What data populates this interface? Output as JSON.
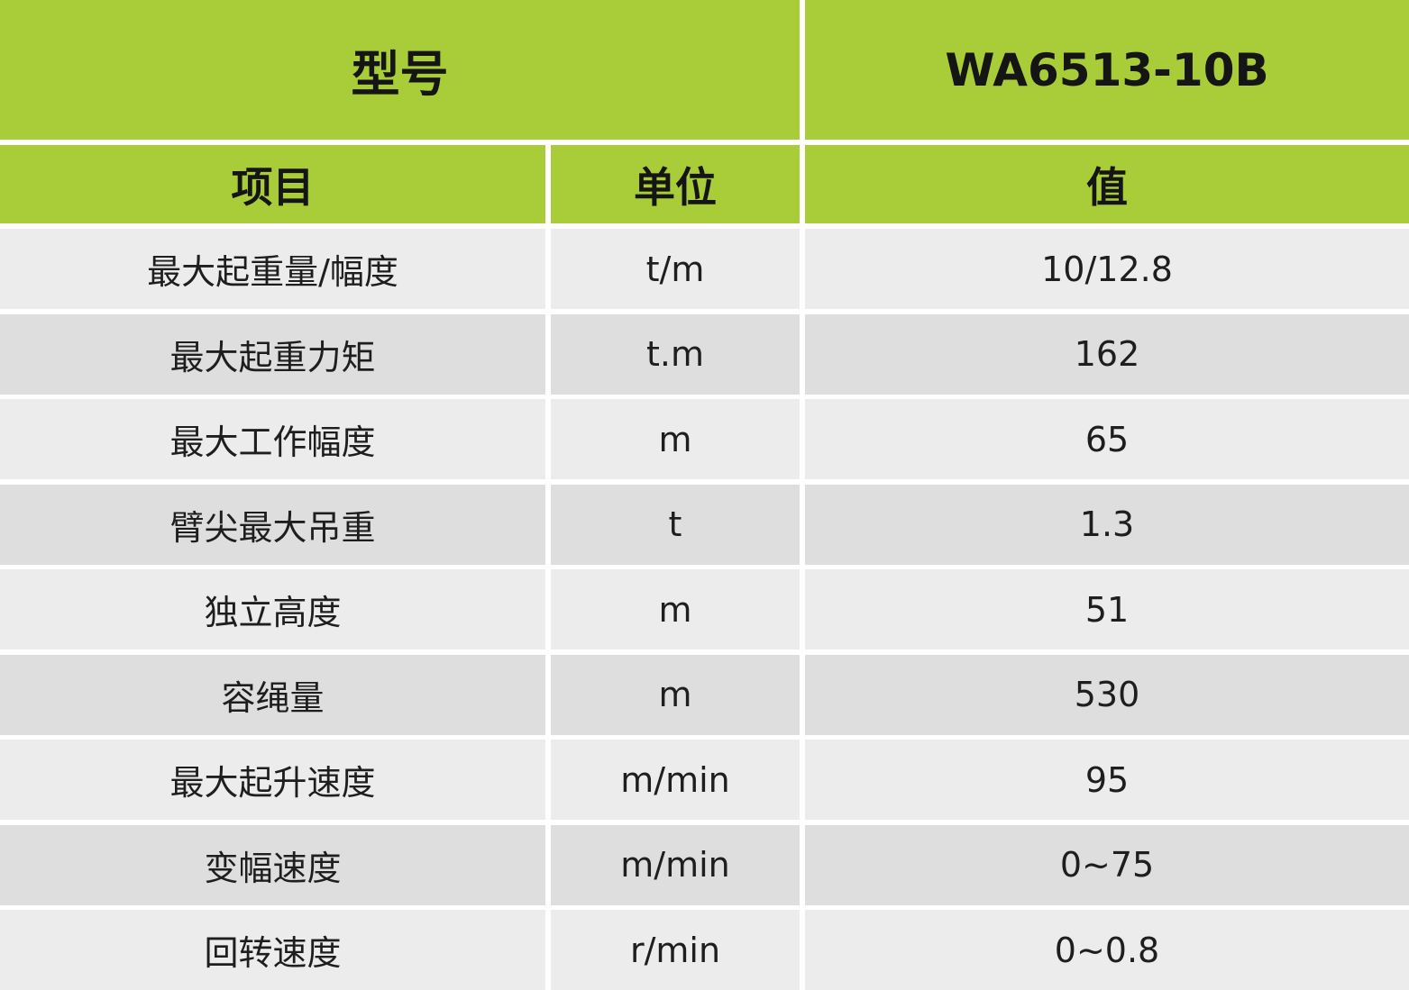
{
  "header": {
    "title": "型号",
    "model": "WA6513-10B"
  },
  "table": {
    "columns": [
      "项目",
      "单位",
      "值"
    ],
    "rows": [
      [
        "最大起重量/幅度",
        "t/m",
        "10/12.8"
      ],
      [
        "最大起重力矩",
        "t.m",
        "162"
      ],
      [
        "最大工作幅度",
        "m",
        "65"
      ],
      [
        "臂尖最大吊重",
        "t",
        "1.3"
      ],
      [
        "独立高度",
        "m",
        "51"
      ],
      [
        "容绳量",
        "m",
        "530"
      ],
      [
        "最大起升速度",
        "m/min",
        "95"
      ],
      [
        "变幅速度",
        "m/min",
        "0~75"
      ],
      [
        "回转速度",
        "r/min",
        "0~0.8"
      ]
    ]
  }
}
